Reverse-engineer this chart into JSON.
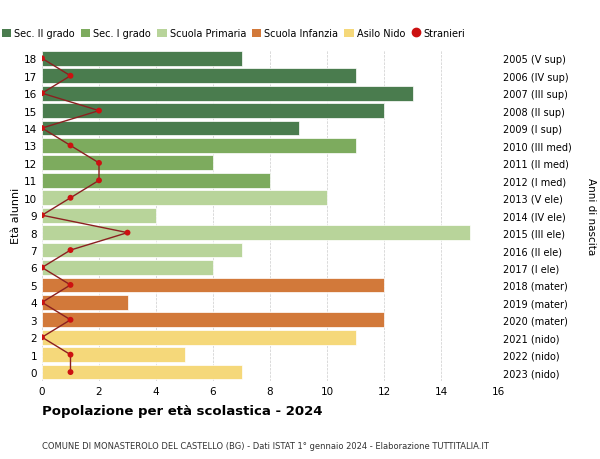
{
  "ages": [
    0,
    1,
    2,
    3,
    4,
    5,
    6,
    7,
    8,
    9,
    10,
    11,
    12,
    13,
    14,
    15,
    16,
    17,
    18
  ],
  "years": [
    "2023 (nido)",
    "2022 (nido)",
    "2021 (nido)",
    "2020 (mater)",
    "2019 (mater)",
    "2018 (mater)",
    "2017 (I ele)",
    "2016 (II ele)",
    "2015 (III ele)",
    "2014 (IV ele)",
    "2013 (V ele)",
    "2012 (I med)",
    "2011 (II med)",
    "2010 (III med)",
    "2009 (I sup)",
    "2008 (II sup)",
    "2007 (III sup)",
    "2006 (IV sup)",
    "2005 (V sup)"
  ],
  "bar_values": [
    7,
    5,
    11,
    12,
    3,
    12,
    6,
    7,
    15,
    4,
    10,
    8,
    6,
    11,
    9,
    12,
    13,
    11,
    7
  ],
  "stranieri": [
    1,
    1,
    0,
    1,
    0,
    1,
    0,
    1,
    3,
    0,
    1,
    2,
    2,
    1,
    0,
    2,
    0,
    1,
    0
  ],
  "colors": {
    "sec_II": "#4a7c4e",
    "sec_I": "#7dab5e",
    "primaria": "#b8d49a",
    "infanzia": "#d2793a",
    "nido": "#f5d87a",
    "stranieri_line": "#8b2020",
    "stranieri_dot": "#cc1111"
  },
  "category_ranges": {
    "sec_II": [
      14,
      18
    ],
    "sec_I": [
      11,
      13
    ],
    "primaria": [
      6,
      10
    ],
    "infanzia": [
      3,
      5
    ],
    "nido": [
      0,
      2
    ]
  },
  "title": "Popolazione per età scolastica - 2024",
  "subtitle": "COMUNE DI MONASTEROLO DEL CASTELLO (BG) - Dati ISTAT 1° gennaio 2024 - Elaborazione TUTTITALIA.IT",
  "ylabel": "Età alunni",
  "right_ylabel": "Anni di nascita",
  "xlim": [
    0,
    16
  ],
  "xticks": [
    0,
    2,
    4,
    6,
    8,
    10,
    12,
    14,
    16
  ],
  "legend_labels": [
    "Sec. II grado",
    "Sec. I grado",
    "Scuola Primaria",
    "Scuola Infanzia",
    "Asilo Nido",
    "Stranieri"
  ],
  "bg_color": "#ffffff",
  "grid_color": "#cccccc"
}
